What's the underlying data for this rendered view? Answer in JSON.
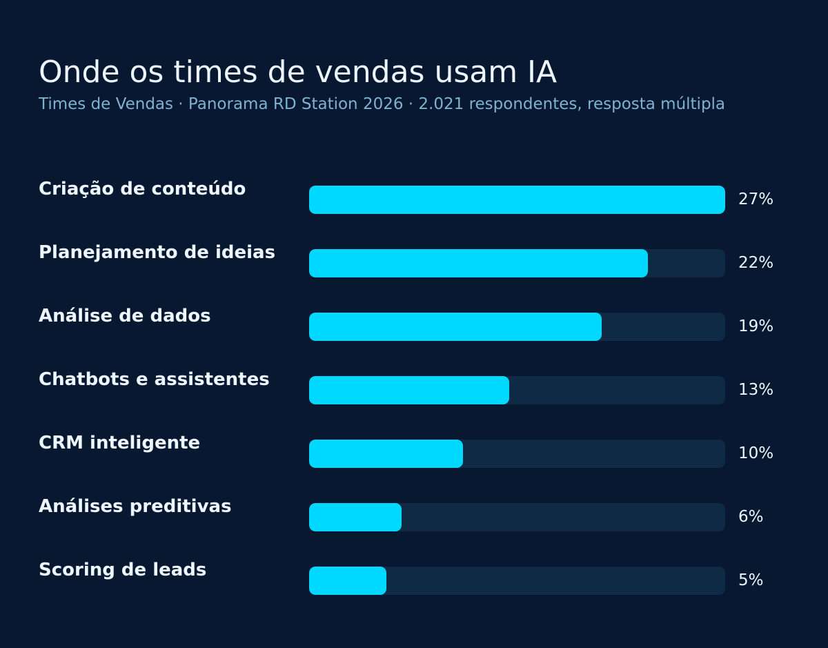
{
  "title": "Onde os times de vendas usam IA",
  "subtitle": "Times de Vendas · Panorama RD Station 2026 · 2.021 respondentes, resposta múltipla",
  "colors": {
    "background": "#071830",
    "bar_fill": "#00d8ff",
    "bar_track": "#0e2a45",
    "text": "#eef6ff",
    "subtitle": "#7fb2cf"
  },
  "chart_data": {
    "type": "bar",
    "orientation": "horizontal",
    "title": "Onde os times de vendas usam IA",
    "subtitle": "Times de Vendas · Panorama RD Station 2026 · 2.021 respondentes, resposta múltipla",
    "categories": [
      "Criação de conteúdo",
      "Planejamento de ideias",
      "Análise de dados",
      "Chatbots e assistentes",
      "CRM inteligente",
      "Análises preditivas",
      "Scoring de leads"
    ],
    "values": [
      27,
      22,
      19,
      13,
      10,
      6,
      5
    ],
    "value_labels": [
      "27%",
      "22%",
      "19%",
      "13%",
      "10%",
      "6%",
      "5%"
    ],
    "unit": "%",
    "xlim": [
      0,
      27
    ],
    "grid": false,
    "legend": "none"
  }
}
